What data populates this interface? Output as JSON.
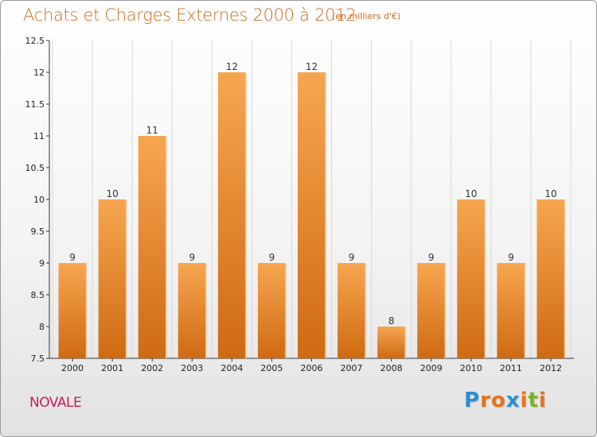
{
  "header": {
    "title": "Achats et Charges Externes 2000 à 2012",
    "subtitle": "(en milliers d'€)"
  },
  "footer": {
    "commune": "NOVALE",
    "logo_letters": [
      "P",
      "r",
      "o",
      "x",
      "i",
      "t",
      "i"
    ],
    "logo_colors": [
      "#2a8fd4",
      "#e8731a",
      "#e8731a",
      "#2a8fd4",
      "#e8731a",
      "#7ab51d",
      "#e8731a"
    ]
  },
  "chart_data": {
    "type": "bar",
    "categories": [
      "2000",
      "2001",
      "2002",
      "2003",
      "2004",
      "2005",
      "2006",
      "2007",
      "2008",
      "2009",
      "2010",
      "2011",
      "2012"
    ],
    "values": [
      9,
      10,
      11,
      9,
      12,
      9,
      12,
      9,
      8,
      9,
      10,
      9,
      10
    ],
    "data_labels": [
      "9",
      "10",
      "11",
      "9",
      "12",
      "9",
      "12",
      "9",
      "8",
      "9",
      "10",
      "9",
      "10"
    ],
    "yticks": [
      "12.5",
      "12",
      "11.5",
      "11",
      "10.5",
      "10",
      "9.5",
      "9",
      "8.5",
      "8",
      "7.5"
    ],
    "ylim": [
      7.5,
      12.5
    ],
    "grid": "vertical",
    "bar_color_top": "#f7a650",
    "bar_color_bottom": "#cf6a12"
  }
}
